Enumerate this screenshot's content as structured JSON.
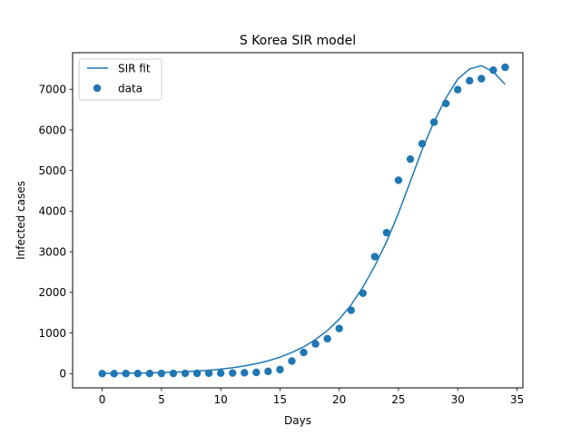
{
  "chart_data": {
    "type": "line",
    "title": "S Korea SIR model",
    "xlabel": "Days",
    "ylabel": "Infected cases",
    "xlim": [
      -2.5,
      35.5
    ],
    "ylim": [
      -350,
      7900
    ],
    "x_ticks": [
      0,
      5,
      10,
      15,
      20,
      25,
      30,
      35
    ],
    "y_ticks": [
      0,
      1000,
      2000,
      3000,
      4000,
      5000,
      6000,
      7000
    ],
    "grid": false,
    "legend_position": "top-left",
    "series": [
      {
        "name": "SIR fit",
        "kind": "line",
        "color": "#1f77b4",
        "x": [
          0,
          1,
          2,
          3,
          4,
          5,
          6,
          7,
          8,
          9,
          10,
          11,
          12,
          13,
          14,
          15,
          16,
          17,
          18,
          19,
          20,
          21,
          22,
          23,
          24,
          25,
          26,
          27,
          28,
          29,
          30,
          31,
          32,
          33,
          34
        ],
        "y": [
          5,
          7,
          10,
          14,
          19,
          26,
          35,
          47,
          63,
          84,
          110,
          145,
          190,
          245,
          315,
          405,
          520,
          660,
          840,
          1060,
          1340,
          1690,
          2130,
          2650,
          3250,
          3950,
          4730,
          5520,
          6200,
          6780,
          7250,
          7500,
          7580,
          7430,
          7120
        ]
      },
      {
        "name": "data",
        "kind": "scatter",
        "color": "#1f77b4",
        "x": [
          0,
          1,
          2,
          3,
          4,
          5,
          6,
          7,
          8,
          9,
          10,
          11,
          12,
          13,
          14,
          15,
          16,
          17,
          18,
          19,
          20,
          21,
          22,
          23,
          24,
          25,
          26,
          27,
          28,
          29,
          30,
          31,
          32,
          33,
          34
        ],
        "y": [
          1,
          1,
          2,
          2,
          3,
          4,
          5,
          6,
          8,
          10,
          12,
          15,
          20,
          30,
          55,
          100,
          310,
          520,
          730,
          860,
          1110,
          1560,
          1980,
          2880,
          3470,
          4760,
          5280,
          5660,
          6190,
          6650,
          6990,
          7210,
          7260,
          7470,
          7540
        ]
      }
    ]
  }
}
